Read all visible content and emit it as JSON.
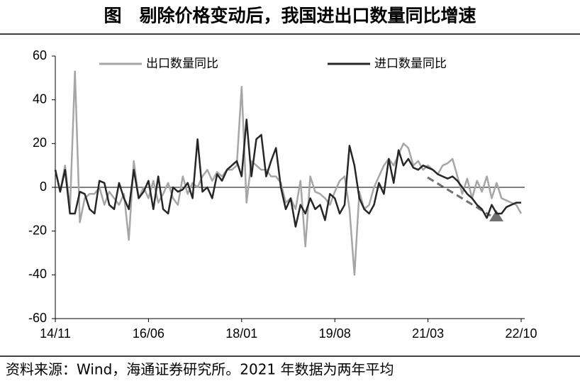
{
  "chart_data": {
    "type": "line",
    "title": "图　剔除价格变动后，我国进出口数量同比增速",
    "source": "资料来源：Wind，海通证券研究所。2021 年数据为两年平均",
    "categories": [
      "14/11",
      null,
      null,
      null,
      null,
      null,
      null,
      null,
      null,
      null,
      null,
      null,
      null,
      null,
      null,
      null,
      null,
      null,
      null,
      "16/06",
      null,
      null,
      null,
      null,
      null,
      null,
      null,
      null,
      null,
      null,
      null,
      null,
      null,
      null,
      null,
      null,
      null,
      null,
      "18/01",
      null,
      null,
      null,
      null,
      null,
      null,
      null,
      null,
      null,
      null,
      null,
      null,
      null,
      null,
      null,
      null,
      null,
      null,
      "19/08",
      null,
      null,
      null,
      null,
      null,
      null,
      null,
      null,
      null,
      null,
      null,
      null,
      null,
      null,
      null,
      null,
      null,
      null,
      "21/03",
      null,
      null,
      null,
      null,
      null,
      null,
      null,
      null,
      null,
      null,
      null,
      null,
      null,
      null,
      null,
      null,
      null,
      null,
      "22/10"
    ],
    "series": [
      {
        "name": "出口数量同比",
        "color": "#a6a6a6",
        "values": [
          8,
          -2,
          10,
          -10,
          53,
          -16,
          -5,
          -3,
          -3,
          0,
          -8,
          -2,
          -5,
          -8,
          -3,
          -24,
          12,
          -5,
          0,
          -5,
          3,
          -7,
          -3,
          2,
          -5,
          -8,
          5,
          -3,
          2,
          0,
          5,
          8,
          3,
          7,
          5,
          8,
          8,
          10,
          46,
          -7,
          12,
          10,
          8,
          8,
          5,
          5,
          2,
          -7,
          -5,
          -10,
          3,
          -27,
          5,
          -2,
          -3,
          -5,
          -8,
          -2,
          3,
          5,
          -10,
          -40,
          -2,
          -10,
          -8,
          0,
          5,
          10,
          13,
          10,
          15,
          20,
          18,
          10,
          12,
          8,
          10,
          8,
          6,
          10,
          11,
          13,
          5,
          -3,
          4,
          -5,
          3,
          -2,
          5,
          -5,
          2,
          -5,
          -6,
          -7,
          -8,
          -12
        ]
      },
      {
        "name": "进口数量同比",
        "color": "#262626",
        "values": [
          8,
          -2,
          8,
          -12,
          -12,
          -2,
          -3,
          -10,
          -12,
          3,
          2,
          -8,
          -10,
          2,
          -5,
          -10,
          8,
          -5,
          -2,
          3,
          -10,
          5,
          -10,
          -12,
          0,
          -2,
          -1,
          2,
          -5,
          22,
          -2,
          0,
          -5,
          6,
          3,
          8,
          10,
          12,
          5,
          31,
          5,
          22,
          24,
          5,
          12,
          18,
          0,
          -10,
          -5,
          -18,
          -8,
          -12,
          -5,
          -10,
          -8,
          -15,
          -3,
          -5,
          -12,
          -8,
          19,
          10,
          -5,
          -10,
          -12,
          -8,
          2,
          -3,
          13,
          2,
          17,
          10,
          13,
          9,
          8,
          10,
          9,
          8,
          6,
          5,
          4,
          5,
          3,
          0,
          -3,
          -5,
          -8,
          -10,
          -14,
          -8,
          -12,
          -12,
          -9,
          -8,
          -7,
          -7
        ]
      }
    ],
    "ylim": [
      -60,
      60
    ],
    "yticks": [
      -60,
      -40,
      -20,
      0,
      20,
      40,
      60
    ]
  }
}
